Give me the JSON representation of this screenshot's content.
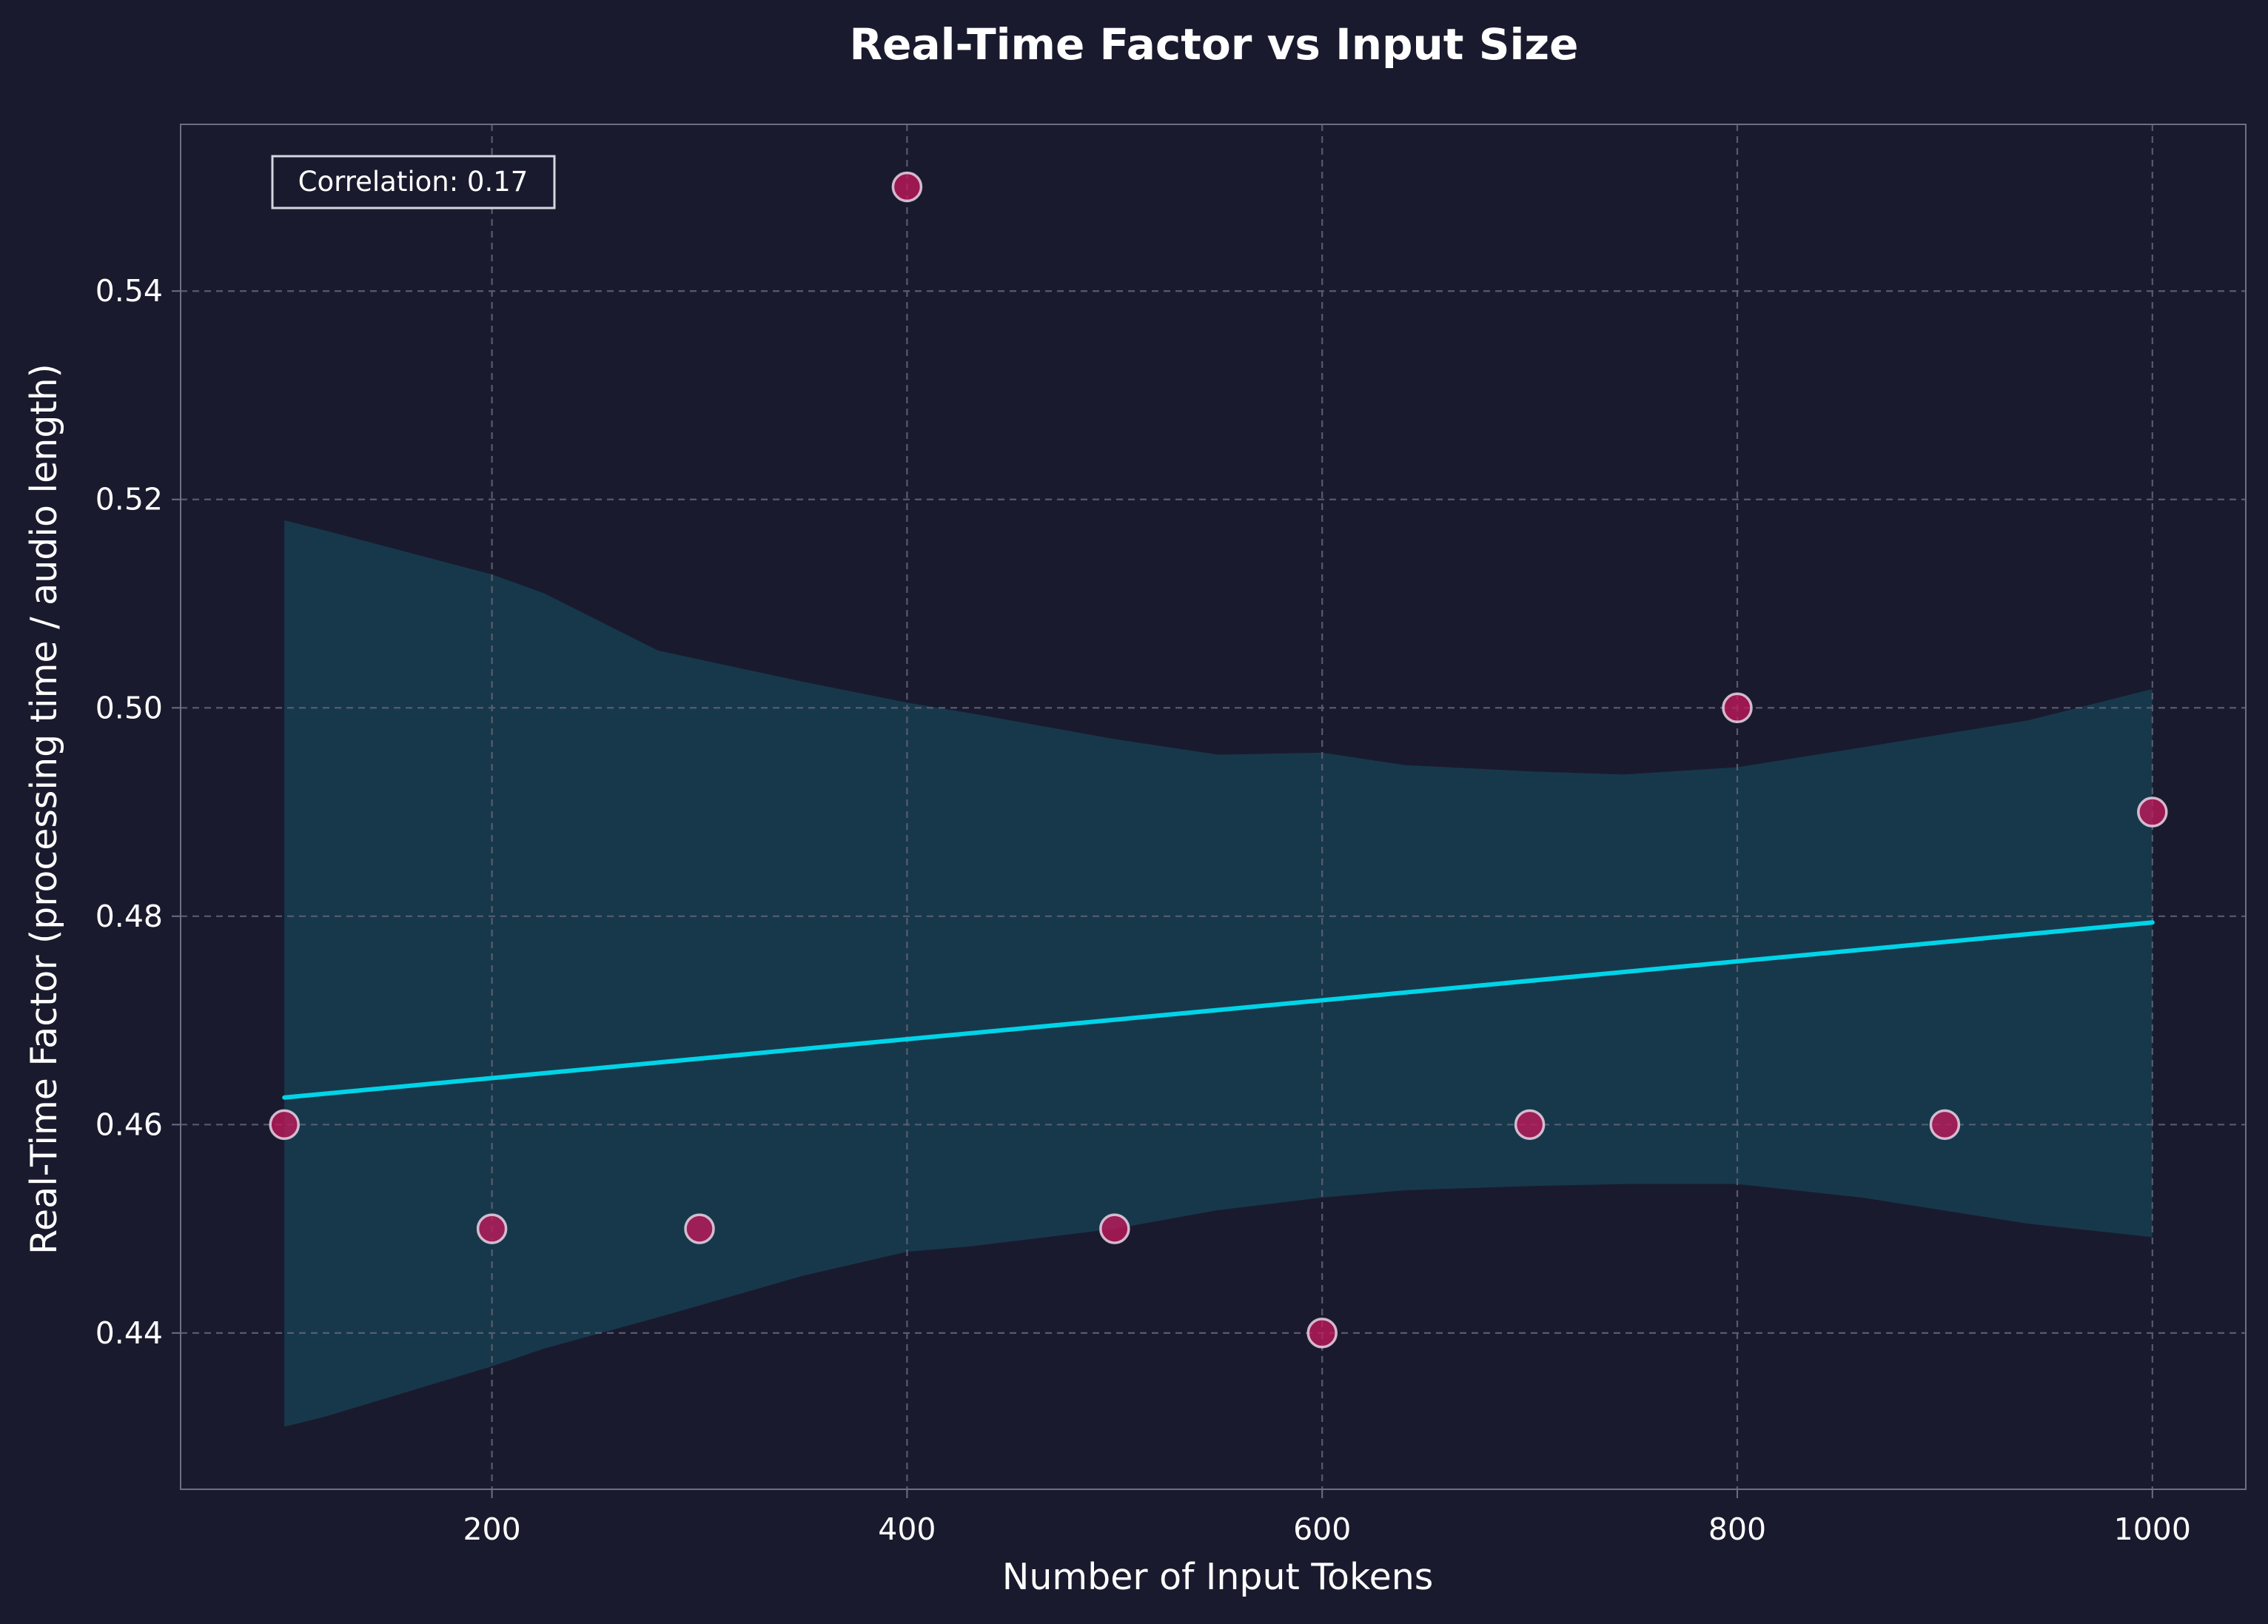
{
  "chart_data": {
    "type": "scatter",
    "title": "Real-Time Factor vs Input Size",
    "xlabel": "Number of Input Tokens",
    "ylabel": "Real-Time Factor (processing time / audio length)",
    "xlim": [
      50,
      1045
    ],
    "ylim": [
      0.425,
      0.556
    ],
    "x_ticks": [
      200,
      400,
      600,
      800,
      1000
    ],
    "y_ticks": [
      0.44,
      0.46,
      0.48,
      0.5,
      0.52,
      0.54
    ],
    "x_tick_labels": [
      "200",
      "400",
      "600",
      "800",
      "1000"
    ],
    "y_tick_labels": [
      "0.44",
      "0.46",
      "0.48",
      "0.50",
      "0.52",
      "0.54"
    ],
    "grid": true,
    "points": {
      "x": [
        100,
        200,
        300,
        400,
        500,
        600,
        700,
        800,
        900,
        1000
      ],
      "y": [
        0.46,
        0.45,
        0.45,
        0.55,
        0.45,
        0.44,
        0.46,
        0.5,
        0.46,
        0.49
      ]
    },
    "regression_line": {
      "x": [
        100,
        1000
      ],
      "y": [
        0.4626,
        0.4794
      ]
    },
    "confidence_band": {
      "x": [
        100,
        120,
        200,
        225,
        280,
        350,
        400,
        430,
        500,
        550,
        600,
        640,
        700,
        745,
        800,
        860,
        940,
        1000
      ],
      "upper": [
        0.518,
        0.517,
        0.5128,
        0.511,
        0.5055,
        0.5025,
        0.5005,
        0.4995,
        0.497,
        0.4955,
        0.4957,
        0.4945,
        0.4939,
        0.4936,
        0.4943,
        0.4962,
        0.4988,
        0.5018
      ],
      "lower": [
        0.431,
        0.432,
        0.4368,
        0.4385,
        0.4415,
        0.4455,
        0.4478,
        0.4483,
        0.45,
        0.4518,
        0.453,
        0.4537,
        0.4541,
        0.4543,
        0.4543,
        0.453,
        0.4505,
        0.4492
      ]
    },
    "annotation": "Correlation: 0.17",
    "colors": {
      "background": "#1a1a2e",
      "point_fill": "#c2185b",
      "point_edge": "#e8d6e6",
      "line": "#00d4e8",
      "band": "#17384b",
      "grid": "#5b5e72",
      "spine": "#6c6e82",
      "text": "#ffffff"
    }
  }
}
